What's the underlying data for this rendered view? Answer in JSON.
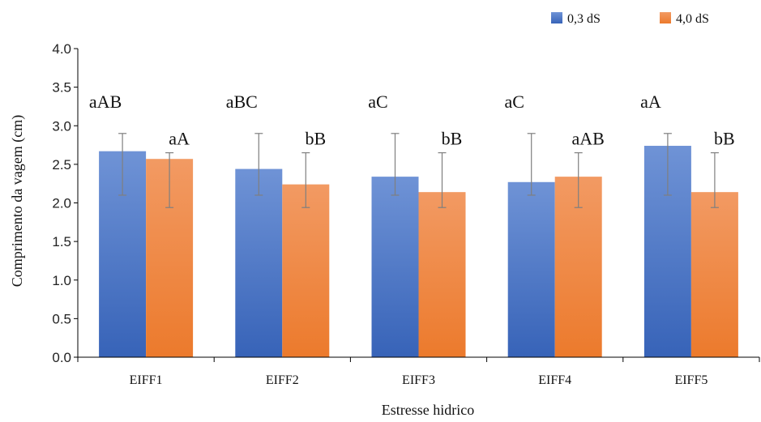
{
  "chart_data": {
    "type": "bar",
    "title": "",
    "xlabel": "Estresse hidrico",
    "ylabel": "Comprimento da vagem (cm)",
    "ylim": [
      0,
      4.0
    ],
    "yticks": [
      "0.0",
      "0.5",
      "1.0",
      "1.5",
      "2.0",
      "2.5",
      "3.0",
      "3.5",
      "4.0"
    ],
    "grid": false,
    "legend_position": "top-right",
    "categories": [
      "EIFF1",
      "EIFF2",
      "EIFF3",
      "EIFF4",
      "EIFF5"
    ],
    "series": [
      {
        "name": "0,3 dS",
        "color": "#4472C4",
        "values": [
          2.67,
          2.44,
          2.34,
          2.27,
          2.74
        ],
        "error_low": [
          2.1,
          2.1,
          2.1,
          2.1,
          2.1
        ],
        "error_high": [
          2.9,
          2.9,
          2.9,
          2.9,
          2.9
        ],
        "labels": [
          "aAB",
          "aBC",
          "aC",
          "aC",
          "aA"
        ]
      },
      {
        "name": "4,0 dS",
        "color": "#ED7D31",
        "values": [
          2.57,
          2.24,
          2.14,
          2.34,
          2.14
        ],
        "error_low": [
          1.94,
          1.94,
          1.94,
          1.94,
          1.94
        ],
        "error_high": [
          2.65,
          2.65,
          2.65,
          2.65,
          2.65
        ],
        "labels": [
          "aA",
          "bB",
          "bB",
          "aAB",
          "bB"
        ]
      }
    ]
  }
}
